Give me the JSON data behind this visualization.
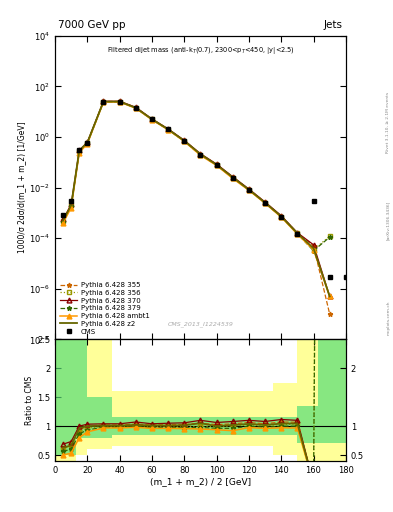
{
  "title_top": "7000 GeV pp",
  "title_right": "Jets",
  "plot_title_main": "Filtered dijet mass",
  "plot_title_sub": "(anti-k_{T}(0.7), 2300<p_{T}<450, |y|<2.5)",
  "xlabel": "(m_1 + m_2) / 2 [GeV]",
  "ylabel_main": "1000/σ 2dσ/d(m_1 + m_2) [1/GeV]",
  "ylabel_ratio": "Ratio to CMS",
  "watermark": "CMS_2013_I1224539",
  "rivet_text": "Rivet 3.1.10, ≥ 2.1M events",
  "arxiv_text": "[arXiv:1306.3436]",
  "mcplots_text": "mcplots.cern.ch",
  "x_data": [
    5,
    10,
    15,
    20,
    30,
    40,
    50,
    60,
    70,
    80,
    90,
    100,
    110,
    120,
    130,
    140,
    150,
    160,
    170,
    180
  ],
  "cms_y": [
    0.0008,
    0.003,
    0.3,
    0.6,
    25.0,
    25.0,
    14.0,
    5.0,
    2.0,
    0.7,
    0.2,
    0.08,
    0.025,
    0.008,
    0.0025,
    0.0007,
    0.00015,
    0.003,
    3e-06,
    3e-06
  ],
  "py355_y": [
    0.0005,
    0.002,
    0.28,
    0.6,
    25.5,
    25.5,
    14.5,
    5.1,
    2.05,
    0.72,
    0.21,
    0.082,
    0.026,
    0.0085,
    0.0026,
    0.00075,
    0.00016,
    5e-05,
    1e-07,
    null
  ],
  "py356_y": [
    0.0005,
    0.002,
    0.27,
    0.58,
    24.8,
    24.8,
    14.1,
    4.95,
    1.98,
    0.69,
    0.2,
    0.079,
    0.025,
    0.0082,
    0.0025,
    0.00072,
    0.000155,
    3.5e-05,
    0.00012,
    null
  ],
  "py370_y": [
    0.00055,
    0.0022,
    0.3,
    0.62,
    26.0,
    26.0,
    15.0,
    5.2,
    2.1,
    0.74,
    0.22,
    0.085,
    0.027,
    0.0088,
    0.0027,
    0.00078,
    0.000165,
    5.5e-05,
    5e-07,
    null
  ],
  "py379_y": [
    0.00045,
    0.0018,
    0.26,
    0.56,
    24.5,
    24.5,
    13.9,
    4.88,
    1.95,
    0.68,
    0.195,
    0.077,
    0.024,
    0.008,
    0.00245,
    0.0007,
    0.00015,
    3.2e-05,
    0.00011,
    null
  ],
  "pyambt1_y": [
    0.0004,
    0.0016,
    0.24,
    0.54,
    24.2,
    24.2,
    13.7,
    4.8,
    1.92,
    0.67,
    0.19,
    0.075,
    0.023,
    0.0078,
    0.0024,
    0.00068,
    0.000145,
    3.5e-05,
    5e-07,
    null
  ],
  "pyz2_y": [
    0.0005,
    0.002,
    0.29,
    0.6,
    25.2,
    25.2,
    14.3,
    5.05,
    2.02,
    0.71,
    0.21,
    0.08,
    0.0255,
    0.0083,
    0.00255,
    0.00073,
    0.000157,
    4e-05,
    5e-07,
    null
  ],
  "xlim": [
    0,
    180
  ],
  "ylim_main": [
    1e-08,
    10000.0
  ],
  "ylim_ratio": [
    0.4,
    2.5
  ],
  "colors": {
    "cms": "#000000",
    "py355": "#cc6600",
    "py356": "#999900",
    "py370": "#880000",
    "py379": "#336600",
    "pyambt1": "#ff9900",
    "pyz2": "#666600"
  },
  "green_band_color": "#55dd77",
  "yellow_band_color": "#ffff99",
  "band_edges": [
    0,
    7,
    13,
    20,
    35,
    55,
    75,
    110,
    135,
    150,
    163,
    180
  ],
  "band_green_lo": [
    0.5,
    0.5,
    0.8,
    0.8,
    0.85,
    0.85,
    0.85,
    0.85,
    0.85,
    0.7,
    0.7,
    0.7
  ],
  "band_green_hi": [
    2.5,
    2.5,
    2.5,
    1.5,
    1.15,
    1.15,
    1.15,
    1.15,
    1.15,
    1.35,
    2.5,
    2.5
  ],
  "band_yellow_lo": [
    0.4,
    0.4,
    0.5,
    0.6,
    0.65,
    0.65,
    0.65,
    0.65,
    0.5,
    0.4,
    0.4,
    0.4
  ],
  "band_yellow_hi": [
    2.5,
    2.5,
    2.5,
    2.5,
    1.6,
    1.6,
    1.6,
    1.6,
    1.75,
    2.5,
    2.5,
    2.5
  ]
}
